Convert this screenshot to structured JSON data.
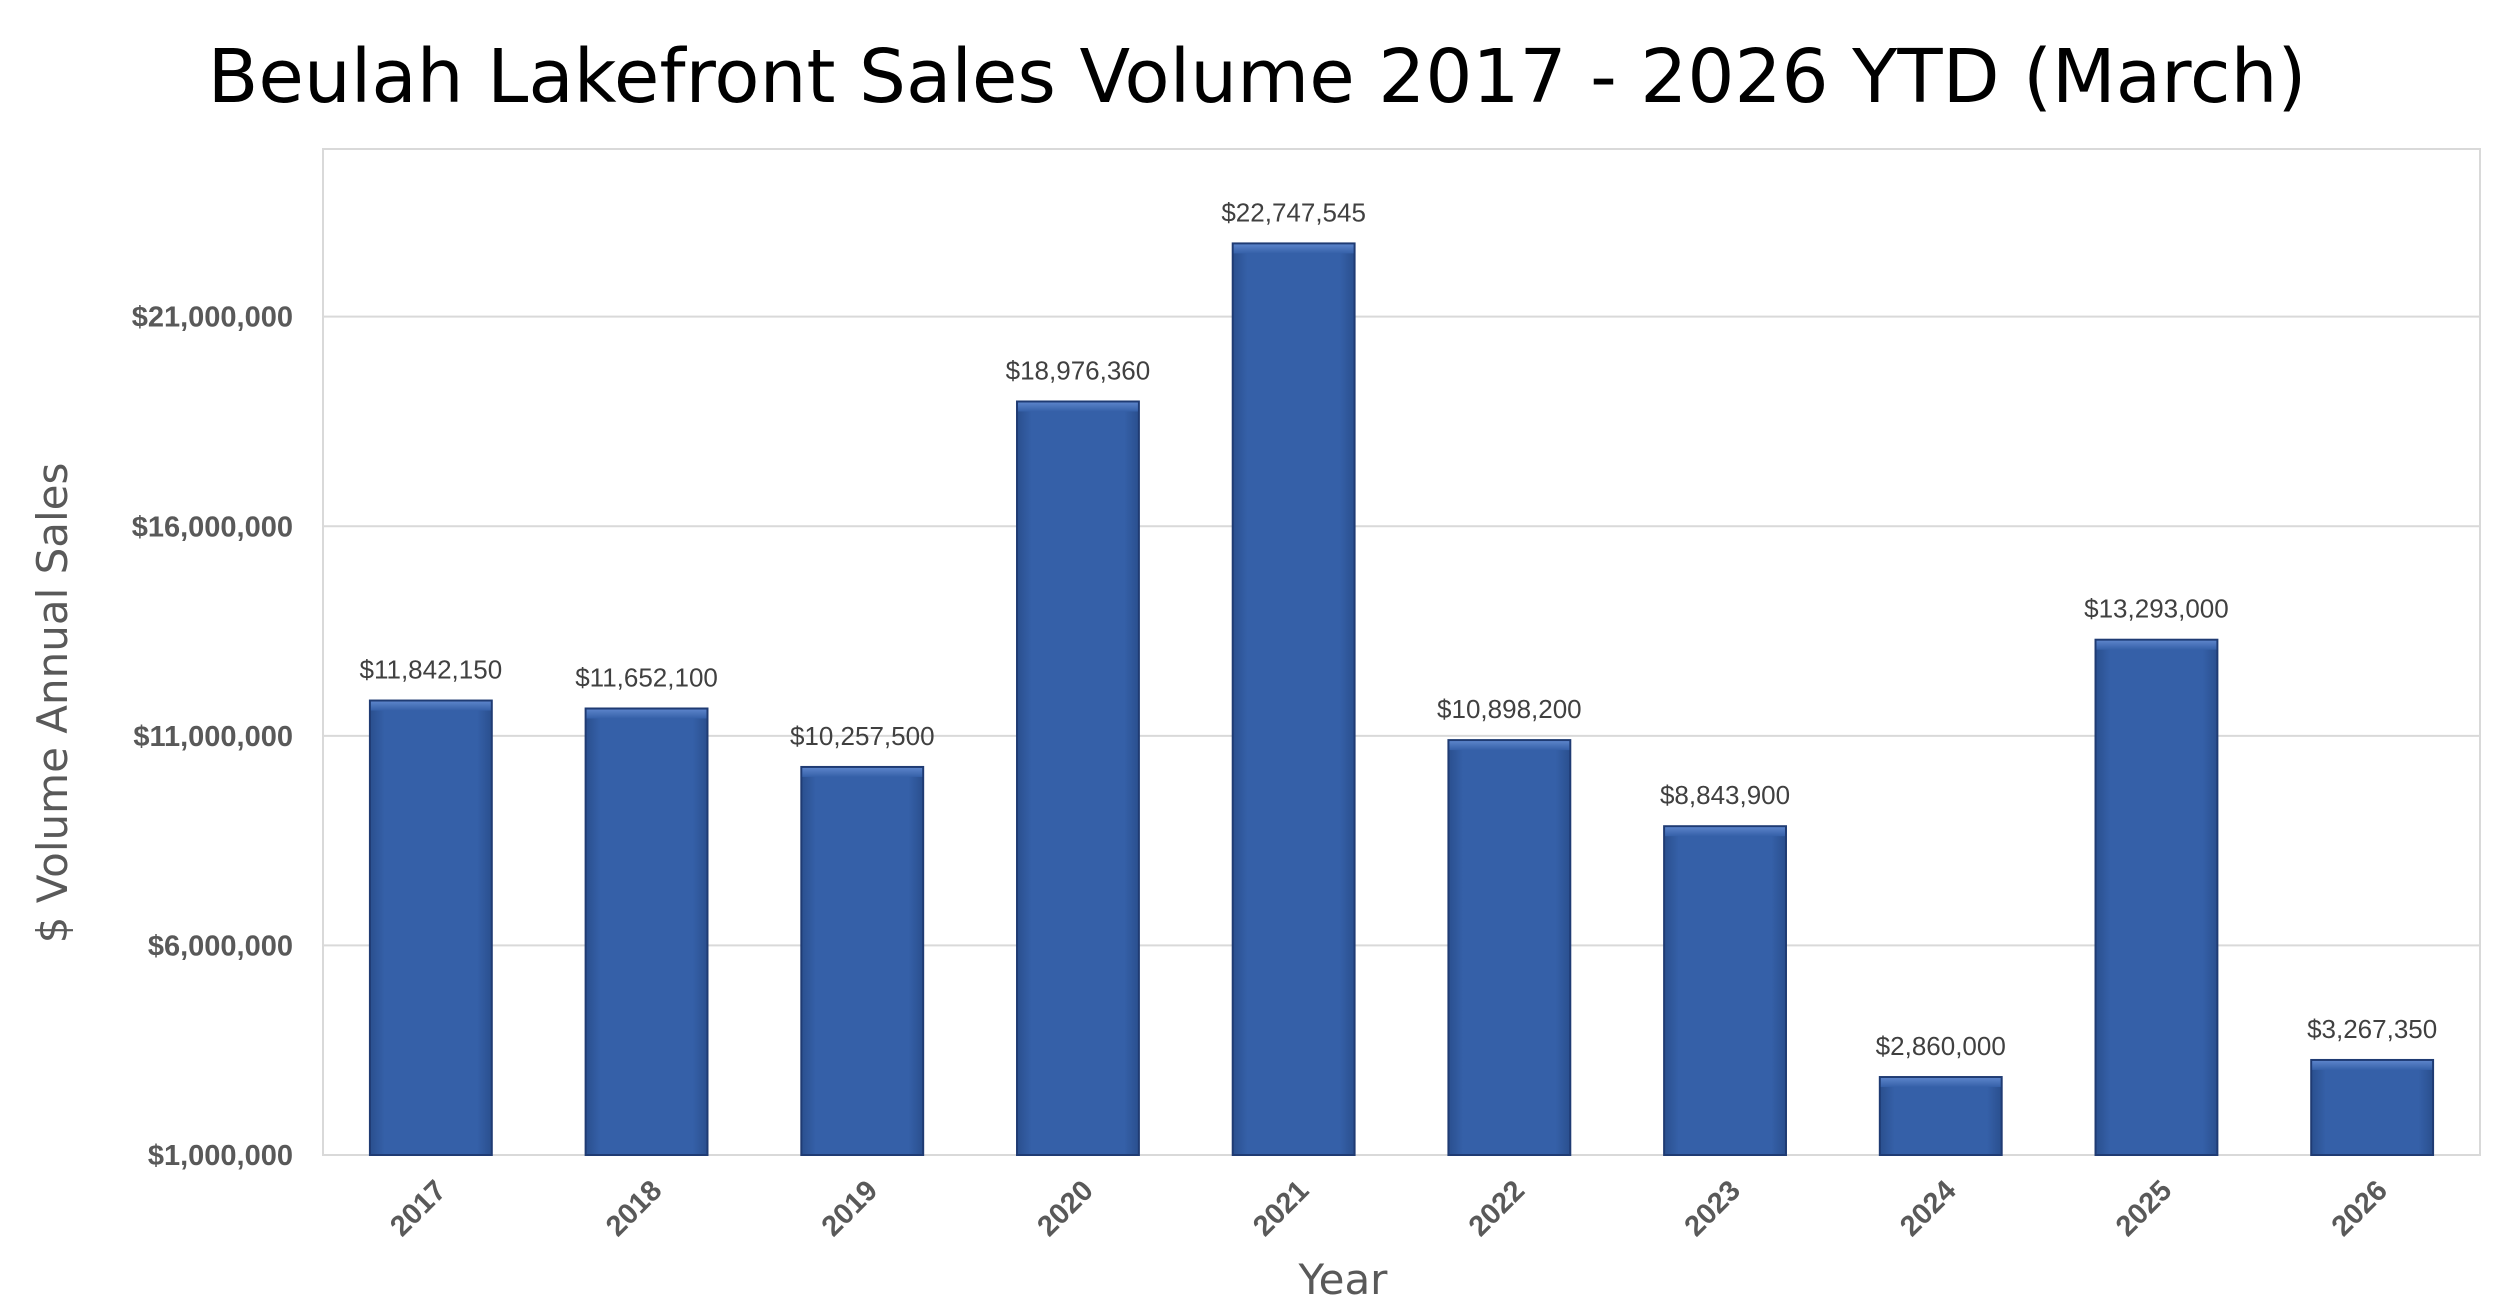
{
  "chart_data": {
    "type": "bar",
    "title": "Beulah Lakefront Sales Volume 2017 - 2026 YTD (March)",
    "xlabel": "Year",
    "ylabel": "$ Volume Annual Sales",
    "categories": [
      "2017",
      "2018",
      "2019",
      "2020",
      "2021",
      "2022",
      "2023",
      "2024",
      "2025",
      "2026"
    ],
    "values": [
      11842150,
      11652100,
      10257500,
      18976360,
      22747545,
      10898200,
      8843900,
      2860000,
      13293000,
      3267350
    ],
    "data_labels": [
      "$11,842,150",
      "$11,652,100",
      "$10,257,500",
      "$18,976,360",
      "$22,747,545",
      "$10,898,200",
      "$8,843,900",
      "$2,860,000",
      "$13,293,000",
      "$3,267,350"
    ],
    "yticks": [
      1000000,
      6000000,
      11000000,
      16000000,
      21000000
    ],
    "ytick_labels": [
      "$1,000,000",
      "$6,000,000",
      "$11,000,000",
      "$16,000,000",
      "$21,000,000"
    ],
    "ylim": [
      1000000,
      25000000
    ],
    "grid": true,
    "legend": "none",
    "bar_color": "#3560A8",
    "bar_edge_color": "#1F3B73"
  }
}
